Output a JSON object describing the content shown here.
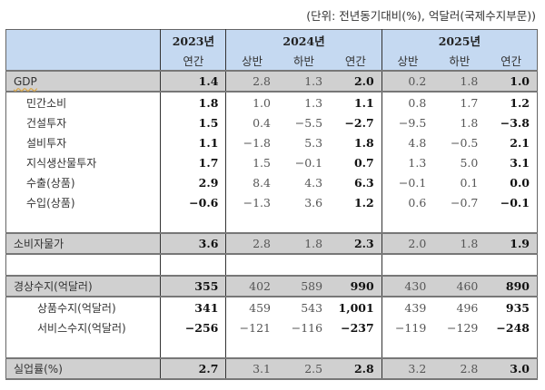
{
  "unit_note": "(단위: 전년동기대비(%), 억달러(국제수지부문))",
  "header": {
    "years": [
      "2023년",
      "2024년",
      "2025년"
    ],
    "periods": [
      "연간",
      "상반",
      "하반",
      "연간",
      "상반",
      "하반",
      "연간"
    ]
  },
  "rows": [
    {
      "label": "GDP",
      "values": [
        "1.4",
        "2.8",
        "1.3",
        "2.0",
        "0.2",
        "1.8",
        "1.0"
      ]
    },
    {
      "label": "민간소비",
      "values": [
        "1.8",
        "1.0",
        "1.3",
        "1.1",
        "0.8",
        "1.7",
        "1.2"
      ]
    },
    {
      "label": "건설투자",
      "values": [
        "1.5",
        "0.4",
        "−5.5",
        "−2.7",
        "−9.5",
        "1.8",
        "−3.8"
      ]
    },
    {
      "label": "설비투자",
      "values": [
        "1.1",
        "−1.8",
        "5.3",
        "1.8",
        "4.8",
        "−0.5",
        "2.1"
      ]
    },
    {
      "label": "지식생산물투자",
      "values": [
        "1.7",
        "1.5",
        "−0.1",
        "0.7",
        "1.3",
        "5.0",
        "3.1"
      ]
    },
    {
      "label": "수출(상품)",
      "values": [
        "2.9",
        "8.4",
        "4.3",
        "6.3",
        "−0.1",
        "0.1",
        "0.0"
      ]
    },
    {
      "label": "수입(상품)",
      "values": [
        "−0.6",
        "−1.3",
        "3.6",
        "1.2",
        "0.6",
        "−0.7",
        "−0.1"
      ]
    },
    {
      "label": "소비자물가",
      "values": [
        "3.6",
        "2.8",
        "1.8",
        "2.3",
        "2.0",
        "1.8",
        "1.9"
      ]
    },
    {
      "label": "경상수지(억달러)",
      "values": [
        "355",
        "402",
        "589",
        "990",
        "430",
        "460",
        "890"
      ]
    },
    {
      "label": "상품수지(억달러)",
      "values": [
        "341",
        "459",
        "543",
        "1,001",
        "439",
        "496",
        "935"
      ]
    },
    {
      "label": "서비스수지(억달러)",
      "values": [
        "−256",
        "−121",
        "−116",
        "−237",
        "−119",
        "−129",
        "−248"
      ]
    },
    {
      "label": "실업률(%)",
      "values": [
        "2.7",
        "3.1",
        "2.5",
        "2.8",
        "3.2",
        "2.8",
        "3.0"
      ]
    }
  ]
}
